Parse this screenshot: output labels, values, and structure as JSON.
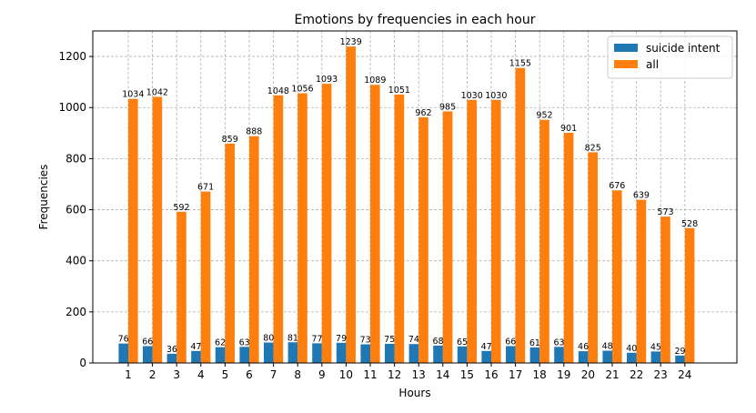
{
  "chart_data": {
    "type": "bar",
    "title": "Emotions by frequencies in each hour",
    "xlabel": "Hours",
    "ylabel": "Frequencies",
    "categories": [
      "1",
      "2",
      "3",
      "4",
      "5",
      "6",
      "7",
      "8",
      "9",
      "10",
      "11",
      "12",
      "13",
      "14",
      "15",
      "16",
      "17",
      "18",
      "19",
      "20",
      "21",
      "22",
      "23",
      "24"
    ],
    "series": [
      {
        "name": "suicide intent",
        "color": "#1f77b4",
        "values": [
          76,
          66,
          36,
          47,
          62,
          63,
          80,
          81,
          77,
          79,
          73,
          75,
          74,
          68,
          65,
          47,
          66,
          61,
          63,
          46,
          48,
          40,
          45,
          29
        ]
      },
      {
        "name": "all",
        "color": "#ff7f0e",
        "values": [
          1034,
          1042,
          592,
          671,
          859,
          888,
          1048,
          1056,
          1093,
          1239,
          1089,
          1051,
          962,
          985,
          1030,
          1030,
          1155,
          952,
          901,
          825,
          676,
          639,
          573,
          528
        ]
      }
    ],
    "ylim": [
      0,
      1300
    ],
    "yticks": [
      0,
      200,
      400,
      600,
      800,
      1000,
      1200
    ],
    "grid": true,
    "legend_position": "top-right"
  }
}
